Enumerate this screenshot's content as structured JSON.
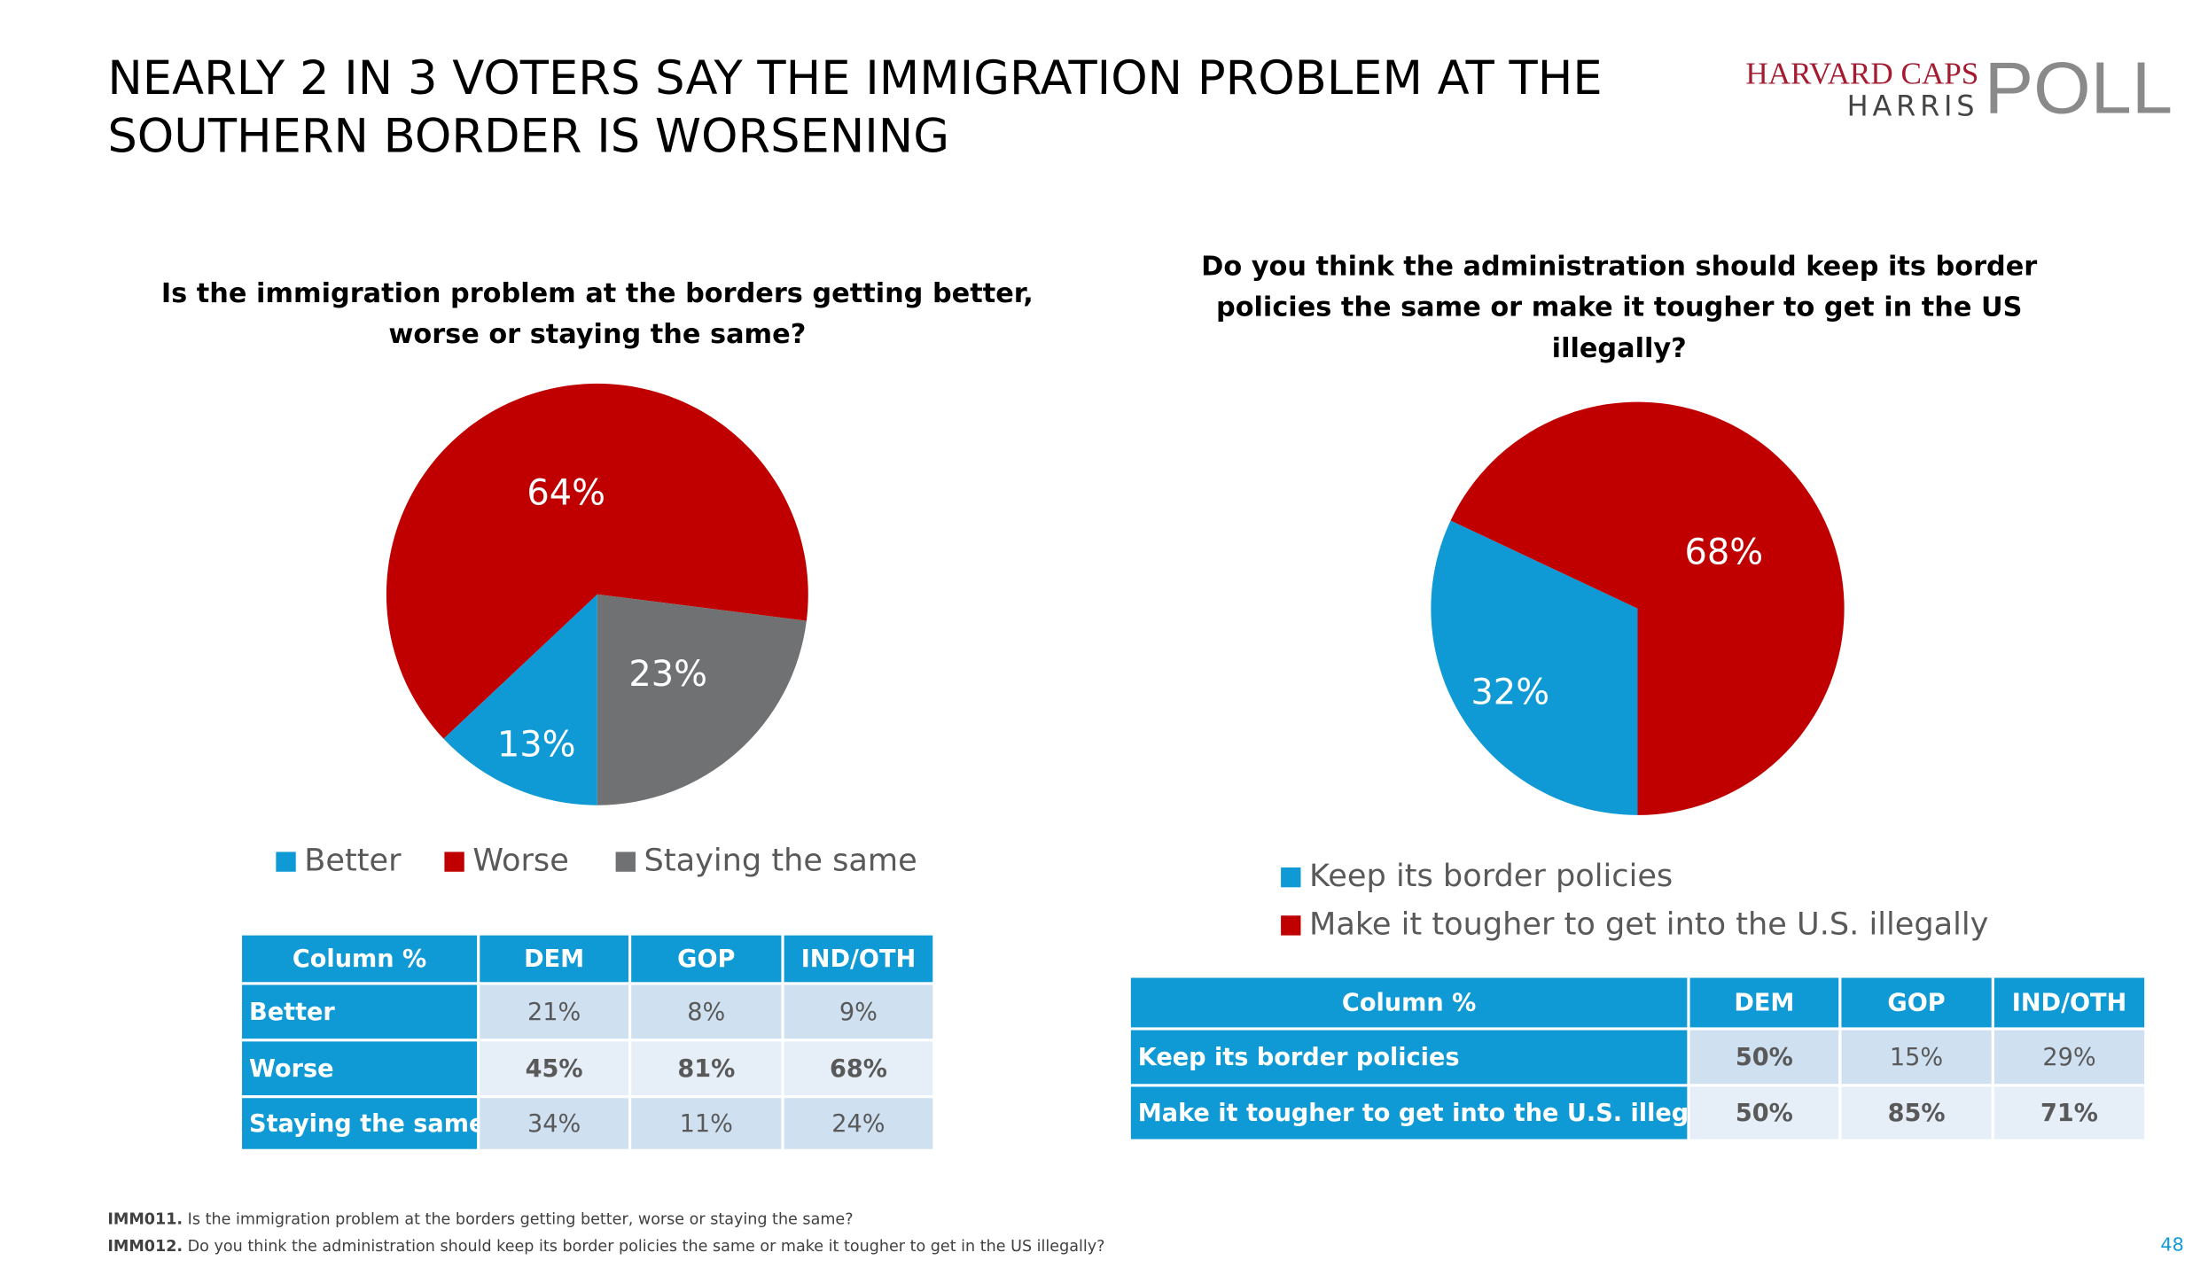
{
  "title": [
    "NEARLY 2 IN 3 VOTERS SAY THE IMMIGRATION PROBLEM AT THE",
    "SOUTHERN BORDER IS WORSENING"
  ],
  "logo": {
    "line1": "HARVARD CAPS",
    "line2": "HARRIS",
    "word": "POLL"
  },
  "chart_data": [
    {
      "type": "pie",
      "title": [
        "Is the immigration problem at the borders getting better,",
        "worse or staying the same?"
      ],
      "categories": [
        "Better",
        "Worse",
        "Staying the same"
      ],
      "values": [
        13,
        64,
        23
      ],
      "value_labels": [
        "13%",
        "64%",
        "23%"
      ],
      "colors": [
        "#0f9ad6",
        "#c00000",
        "#707173"
      ]
    },
    {
      "type": "pie",
      "title": [
        "Do you think the administration should keep its border",
        "policies the same or make it tougher to get in the US",
        "illegally?"
      ],
      "categories": [
        "Keep its border policies",
        "Make it tougher to get into the U.S. illegally"
      ],
      "values": [
        32,
        68
      ],
      "value_labels": [
        "32%",
        "68%"
      ],
      "colors": [
        "#0f9ad6",
        "#c00000"
      ]
    }
  ],
  "tables": [
    {
      "header": [
        "Column %",
        "DEM",
        "GOP",
        "IND/OTH"
      ],
      "rows": [
        [
          "Better",
          "21%",
          "8%",
          "9%"
        ],
        [
          "Worse",
          "45%",
          "81%",
          "68%"
        ],
        [
          "Staying the same",
          "34%",
          "11%",
          "24%"
        ]
      ]
    },
    {
      "header": [
        "Column %",
        "DEM",
        "GOP",
        "IND/OTH"
      ],
      "rows": [
        [
          "Keep its border policies",
          "50%",
          "15%",
          "29%"
        ],
        [
          "Make it tougher to get into the U.S. illegally",
          "50%",
          "85%",
          "71%"
        ]
      ]
    }
  ],
  "footnotes": [
    {
      "code": "IMM011.",
      "text": "Is the immigration problem at the borders getting better, worse or staying the same?"
    },
    {
      "code": "IMM012.",
      "text": "Do you think the administration should keep its border policies the same or make it tougher to get in the US illegally?"
    }
  ],
  "page_number": "48"
}
